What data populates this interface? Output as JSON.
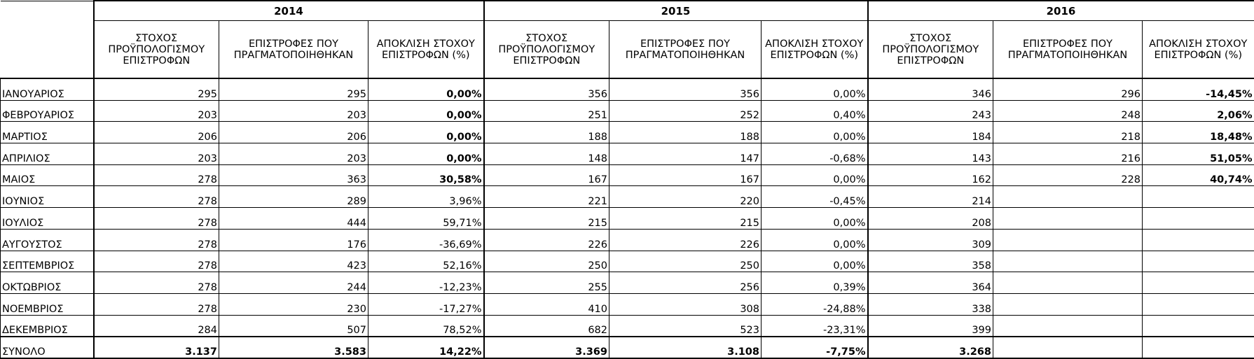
{
  "years": [
    "2014",
    "2015",
    "2016"
  ],
  "column_headers": [
    "ΣΤΟΧΟΣ ΠΡΟΫΠΟΛΟΓΙΣΜΟΥ ΕΠΙΣΤΡΟΦΩΝ",
    "ΕΠΙΣΤΡΟΦΕΣ ΠΟΥ ΠΡΑΓΜΑΤΟΠΟΙΗΘΗΚΑΝ",
    "ΑΠΟΚΛΙΣΗ ΣΤΟΧΟΥ ΕΠΙΣΤΡΟΦΩΝ (%)"
  ],
  "rows": [
    {
      "month": "ΙΑΝΟΥΑΡΙΟΣ",
      "y2014": [
        "295",
        "295",
        "0,00%"
      ],
      "y2015": [
        "356",
        "356",
        "0,00%"
      ],
      "y2016": [
        "346",
        "296",
        "-14,45%"
      ]
    },
    {
      "month": "ΦΕΒΡΟΥΑΡΙΟΣ",
      "y2014": [
        "203",
        "203",
        "0,00%"
      ],
      "y2015": [
        "251",
        "252",
        "0,40%"
      ],
      "y2016": [
        "243",
        "248",
        "2,06%"
      ]
    },
    {
      "month": "ΜΑΡΤΙΟΣ",
      "y2014": [
        "206",
        "206",
        "0,00%"
      ],
      "y2015": [
        "188",
        "188",
        "0,00%"
      ],
      "y2016": [
        "184",
        "218",
        "18,48%"
      ]
    },
    {
      "month": "ΑΠΡΙΛΙΟΣ",
      "y2014": [
        "203",
        "203",
        "0,00%"
      ],
      "y2015": [
        "148",
        "147",
        "-0,68%"
      ],
      "y2016": [
        "143",
        "216",
        "51,05%"
      ]
    },
    {
      "month": "ΜΑΙΟΣ",
      "y2014": [
        "278",
        "363",
        "30,58%"
      ],
      "y2015": [
        "167",
        "167",
        "0,00%"
      ],
      "y2016": [
        "162",
        "228",
        "40,74%"
      ]
    },
    {
      "month": "ΙΟΥΝΙΟΣ",
      "y2014": [
        "278",
        "289",
        "3,96%"
      ],
      "y2015": [
        "221",
        "220",
        "-0,45%"
      ],
      "y2016": [
        "214",
        "",
        ""
      ]
    },
    {
      "month": "ΙΟΥΛΙΟΣ",
      "y2014": [
        "278",
        "444",
        "59,71%"
      ],
      "y2015": [
        "215",
        "215",
        "0,00%"
      ],
      "y2016": [
        "208",
        "",
        ""
      ]
    },
    {
      "month": "ΑΥΓΟΥΣΤΟΣ",
      "y2014": [
        "278",
        "176",
        "-36,69%"
      ],
      "y2015": [
        "226",
        "226",
        "0,00%"
      ],
      "y2016": [
        "309",
        "",
        ""
      ]
    },
    {
      "month": "ΣΕΠΤΕΜΒΡΙΟΣ",
      "y2014": [
        "278",
        "423",
        "52,16%"
      ],
      "y2015": [
        "250",
        "250",
        "0,00%"
      ],
      "y2016": [
        "358",
        "",
        ""
      ]
    },
    {
      "month": "ΟΚΤΩΒΡΙΟΣ",
      "y2014": [
        "278",
        "244",
        "-12,23%"
      ],
      "y2015": [
        "255",
        "256",
        "0,39%"
      ],
      "y2016": [
        "364",
        "",
        ""
      ]
    },
    {
      "month": "ΝΟΕΜΒΡΙΟΣ",
      "y2014": [
        "278",
        "230",
        "-17,27%"
      ],
      "y2015": [
        "410",
        "308",
        "-24,88%"
      ],
      "y2016": [
        "338",
        "",
        ""
      ]
    },
    {
      "month": "ΔΕΚΕΜΒΡΙΟΣ",
      "y2014": [
        "284",
        "507",
        "78,52%"
      ],
      "y2015": [
        "682",
        "523",
        "-23,31%"
      ],
      "y2016": [
        "399",
        "",
        ""
      ]
    }
  ],
  "total": {
    "label": "ΣΥΝΟΛΟ",
    "y2014": [
      "3.137",
      "3.583",
      "14,22%"
    ],
    "y2015": [
      "3.369",
      "3.108",
      "-7,75%"
    ],
    "y2016": [
      "3.268",
      "",
      ""
    ]
  },
  "bold_columns": {
    "y2014_pct_bold_rows": [
      0,
      1,
      2,
      3,
      4
    ],
    "y2016_pct_bold_rows": [
      0,
      1,
      2,
      3,
      4
    ]
  }
}
